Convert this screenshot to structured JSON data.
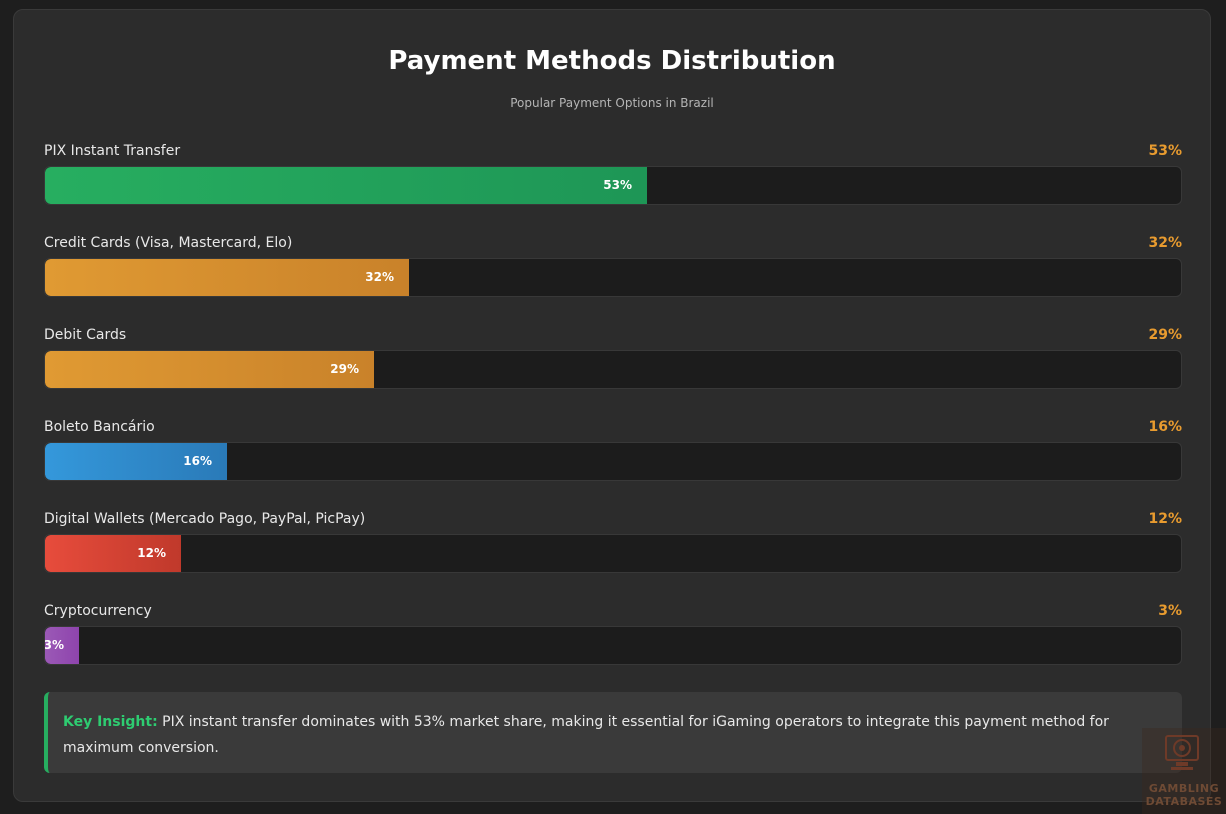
{
  "chart_data": {
    "type": "bar",
    "orientation": "horizontal",
    "title": "Payment Methods Distribution",
    "subtitle": "Popular Payment Options in Brazil",
    "categories": [
      "PIX Instant Transfer",
      "Credit Cards (Visa, Mastercard, Elo)",
      "Debit Cards",
      "Boleto Bancário",
      "Digital Wallets (Mercado Pago, PayPal, PicPay)",
      "Cryptocurrency"
    ],
    "values": [
      53,
      32,
      29,
      16,
      12,
      3
    ],
    "value_labels": [
      "53%",
      "32%",
      "29%",
      "16%",
      "12%",
      "3%"
    ],
    "ylim": [
      0,
      100
    ],
    "colors": [
      [
        "#27ae60",
        "#1e9656"
      ],
      [
        "#e09a33",
        "#c9822a"
      ],
      [
        "#e09a33",
        "#c9822a"
      ],
      [
        "#3498db",
        "#2a7ab8"
      ],
      [
        "#e74c3c",
        "#c0392b"
      ],
      [
        "#9b59b6",
        "#8e44ad"
      ]
    ],
    "value_color": "#e89b2f"
  },
  "insight": {
    "label": "Key Insight:",
    "text": " PIX instant transfer dominates with 53% market share, making it essential for iGaming operators to integrate this payment method for maximum conversion.",
    "accent": "#27ae60"
  },
  "watermark": {
    "line1": "GAMBLING",
    "line2": "DATABASES"
  }
}
